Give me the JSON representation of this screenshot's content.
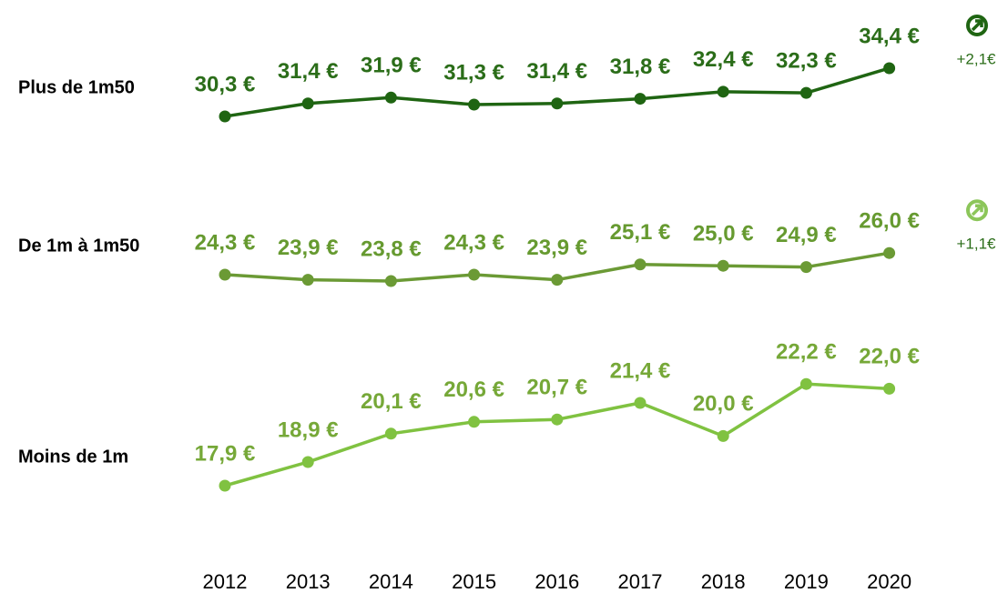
{
  "chart_data": {
    "type": "line",
    "categories": [
      "2012",
      "2013",
      "2014",
      "2015",
      "2016",
      "2017",
      "2018",
      "2019",
      "2020"
    ],
    "series": [
      {
        "name": "Plus de 1m50",
        "color": "#1f6512",
        "label_color": "#2b6d19",
        "ylim": [
          28,
          36
        ],
        "values": [
          30.3,
          31.4,
          31.9,
          31.3,
          31.4,
          31.8,
          32.4,
          32.3,
          34.4
        ],
        "value_labels": [
          "30,3 €",
          "31,4 €",
          "31,9 €",
          "31,3 €",
          "31,4 €",
          "31,8 €",
          "32,4 €",
          "32,3 €",
          "34,4 €"
        ],
        "change": "+2,1€"
      },
      {
        "name": "De 1m à 1m50",
        "color": "#6b9a35",
        "label_color": "#669a30",
        "ylim": [
          22,
          28
        ],
        "values": [
          24.3,
          23.9,
          23.8,
          24.3,
          23.9,
          25.1,
          25.0,
          24.9,
          26.0
        ],
        "value_labels": [
          "24,3 €",
          "23,9 €",
          "23,8 €",
          "24,3 €",
          "23,9 €",
          "25,1 €",
          "25,0 €",
          "24,9 €",
          "26,0 €"
        ],
        "change": "+1,1€",
        "icon_color": "#8cc65a"
      },
      {
        "name": "Moins de 1m",
        "color": "#80c241",
        "label_color": "#76a838",
        "ylim": [
          16,
          24
        ],
        "values": [
          17.9,
          18.9,
          20.1,
          20.6,
          20.7,
          21.4,
          20.0,
          22.2,
          22.0
        ],
        "value_labels": [
          "17,9 €",
          "18,9 €",
          "20,1 €",
          "20,6 €",
          "20,7 €",
          "21,4 €",
          "20,0 €",
          "22,2 €",
          "22,0 €"
        ]
      }
    ]
  }
}
